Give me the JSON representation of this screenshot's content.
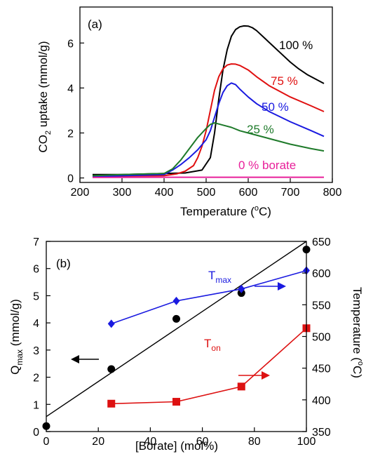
{
  "figure": {
    "panel_a_tag": "(a)",
    "panel_b_tag": "(b)",
    "panel_a_xlabel_main": "Temperature (",
    "panel_a_xlabel_sup": "o",
    "panel_a_xlabel_end": "C)",
    "panel_a_ylabel_1": "CO",
    "panel_a_ylabel_sub": "2",
    "panel_a_ylabel_2": " uptake (mmol/g)",
    "panel_b_xlabel": "[Borate] (mol%)",
    "panel_b_ylabel_left_main": "Q",
    "panel_b_ylabel_left_sub": "max",
    "panel_b_ylabel_left_end": " (mmol/g)",
    "panel_b_ylabel_right_main": "Temperature (",
    "panel_b_ylabel_right_sup": "o",
    "panel_b_ylabel_right_end": "C)",
    "label_tmax_main": "T",
    "label_tmax_sub": "max",
    "label_ton_main": "T",
    "label_ton_sub": "on"
  },
  "chart_data": [
    {
      "type": "line",
      "panel": "(a)",
      "xlabel": "Temperature (oC)",
      "ylabel": "CO2 uptake (mmol/g)",
      "xlim": [
        200,
        800
      ],
      "ylim": [
        -0.2,
        7.6
      ],
      "xticks": [
        200,
        300,
        400,
        500,
        600,
        700,
        800
      ],
      "yticks": [
        0,
        2,
        4,
        6
      ],
      "grid": false,
      "series": [
        {
          "name": "100 %",
          "color": "#000000",
          "x": [
            230,
            300,
            400,
            450,
            490,
            510,
            520,
            530,
            540,
            550,
            560,
            570,
            580,
            590,
            600,
            610,
            620,
            640,
            660,
            680,
            700,
            720,
            740,
            760,
            780
          ],
          "y": [
            0.15,
            0.15,
            0.2,
            0.22,
            0.35,
            0.9,
            2.0,
            3.5,
            4.8,
            5.7,
            6.3,
            6.6,
            6.72,
            6.76,
            6.75,
            6.68,
            6.55,
            6.2,
            5.85,
            5.5,
            5.15,
            4.85,
            4.6,
            4.4,
            4.2
          ]
        },
        {
          "name": "75 %",
          "color": "#e01010",
          "x": [
            230,
            300,
            400,
            430,
            450,
            470,
            480,
            490,
            500,
            510,
            520,
            530,
            540,
            550,
            560,
            570,
            580,
            600,
            620,
            650,
            700,
            750,
            780
          ],
          "y": [
            0.05,
            0.08,
            0.1,
            0.18,
            0.3,
            0.55,
            0.9,
            1.4,
            2.1,
            3.0,
            3.9,
            4.5,
            4.85,
            5.02,
            5.07,
            5.06,
            5.0,
            4.8,
            4.5,
            4.1,
            3.6,
            3.2,
            2.95
          ]
        },
        {
          "name": "50 %",
          "color": "#1a1ae0",
          "x": [
            230,
            300,
            400,
            420,
            440,
            460,
            480,
            500,
            510,
            520,
            530,
            540,
            550,
            560,
            570,
            580,
            600,
            620,
            650,
            700,
            750,
            780
          ],
          "y": [
            0.05,
            0.1,
            0.15,
            0.35,
            0.6,
            0.9,
            1.25,
            1.7,
            2.1,
            2.7,
            3.3,
            3.8,
            4.1,
            4.22,
            4.15,
            3.95,
            3.6,
            3.3,
            2.95,
            2.5,
            2.1,
            1.85
          ]
        },
        {
          "name": "25 %",
          "color": "#1e7a2a",
          "x": [
            230,
            300,
            400,
            420,
            440,
            460,
            480,
            500,
            510,
            520,
            530,
            540,
            560,
            580,
            600,
            650,
            700,
            750,
            780
          ],
          "y": [
            0.1,
            0.15,
            0.2,
            0.4,
            0.8,
            1.3,
            1.8,
            2.2,
            2.38,
            2.45,
            2.4,
            2.35,
            2.25,
            2.1,
            2.0,
            1.75,
            1.5,
            1.3,
            1.2
          ]
        },
        {
          "name": "0 % borate",
          "color": "#e8209a",
          "x": [
            230,
            400,
            600,
            780
          ],
          "y": [
            0.02,
            0.03,
            0.03,
            0.03
          ]
        }
      ]
    },
    {
      "type": "scatter",
      "panel": "(b)",
      "xlabel": "[Borate] (mol%)",
      "ylabel": "Qmax (mmol/g)",
      "ylabel_right": "Temperature (oC)",
      "xlim": [
        0,
        100
      ],
      "ylim": [
        0,
        7
      ],
      "ylim_right": [
        350,
        650
      ],
      "xticks": [
        0,
        20,
        40,
        60,
        80,
        100
      ],
      "yticks": [
        0,
        1,
        2,
        3,
        4,
        5,
        6,
        7
      ],
      "yticks_right": [
        350,
        400,
        450,
        500,
        550,
        600,
        650
      ],
      "grid": false,
      "series": [
        {
          "name": "Qmax",
          "axis": "left",
          "color": "#000000",
          "marker": "circle",
          "x": [
            0,
            25,
            50,
            75,
            100
          ],
          "y": [
            0.2,
            2.3,
            4.15,
            5.1,
            6.7
          ]
        },
        {
          "name": "Qmax fit",
          "axis": "left",
          "color": "#000000",
          "marker": "none",
          "x": [
            0,
            100
          ],
          "y": [
            0.55,
            7.0
          ]
        },
        {
          "name": "Tmax",
          "axis": "right",
          "color": "#1a1ae0",
          "marker": "diamond",
          "x": [
            25,
            50,
            75,
            100
          ],
          "y": [
            520,
            556,
            575,
            604
          ]
        },
        {
          "name": "Ton",
          "axis": "right",
          "color": "#dd1111",
          "marker": "square",
          "x": [
            25,
            50,
            75,
            100
          ],
          "y": [
            394,
            397,
            421,
            513
          ]
        }
      ],
      "annotations": [
        {
          "text": "Tmax",
          "color": "#1a1ae0",
          "x": 62,
          "y_right": 578
        },
        {
          "text": "Ton",
          "color": "#dd1111",
          "x": 63,
          "y_right": 428
        }
      ]
    }
  ]
}
